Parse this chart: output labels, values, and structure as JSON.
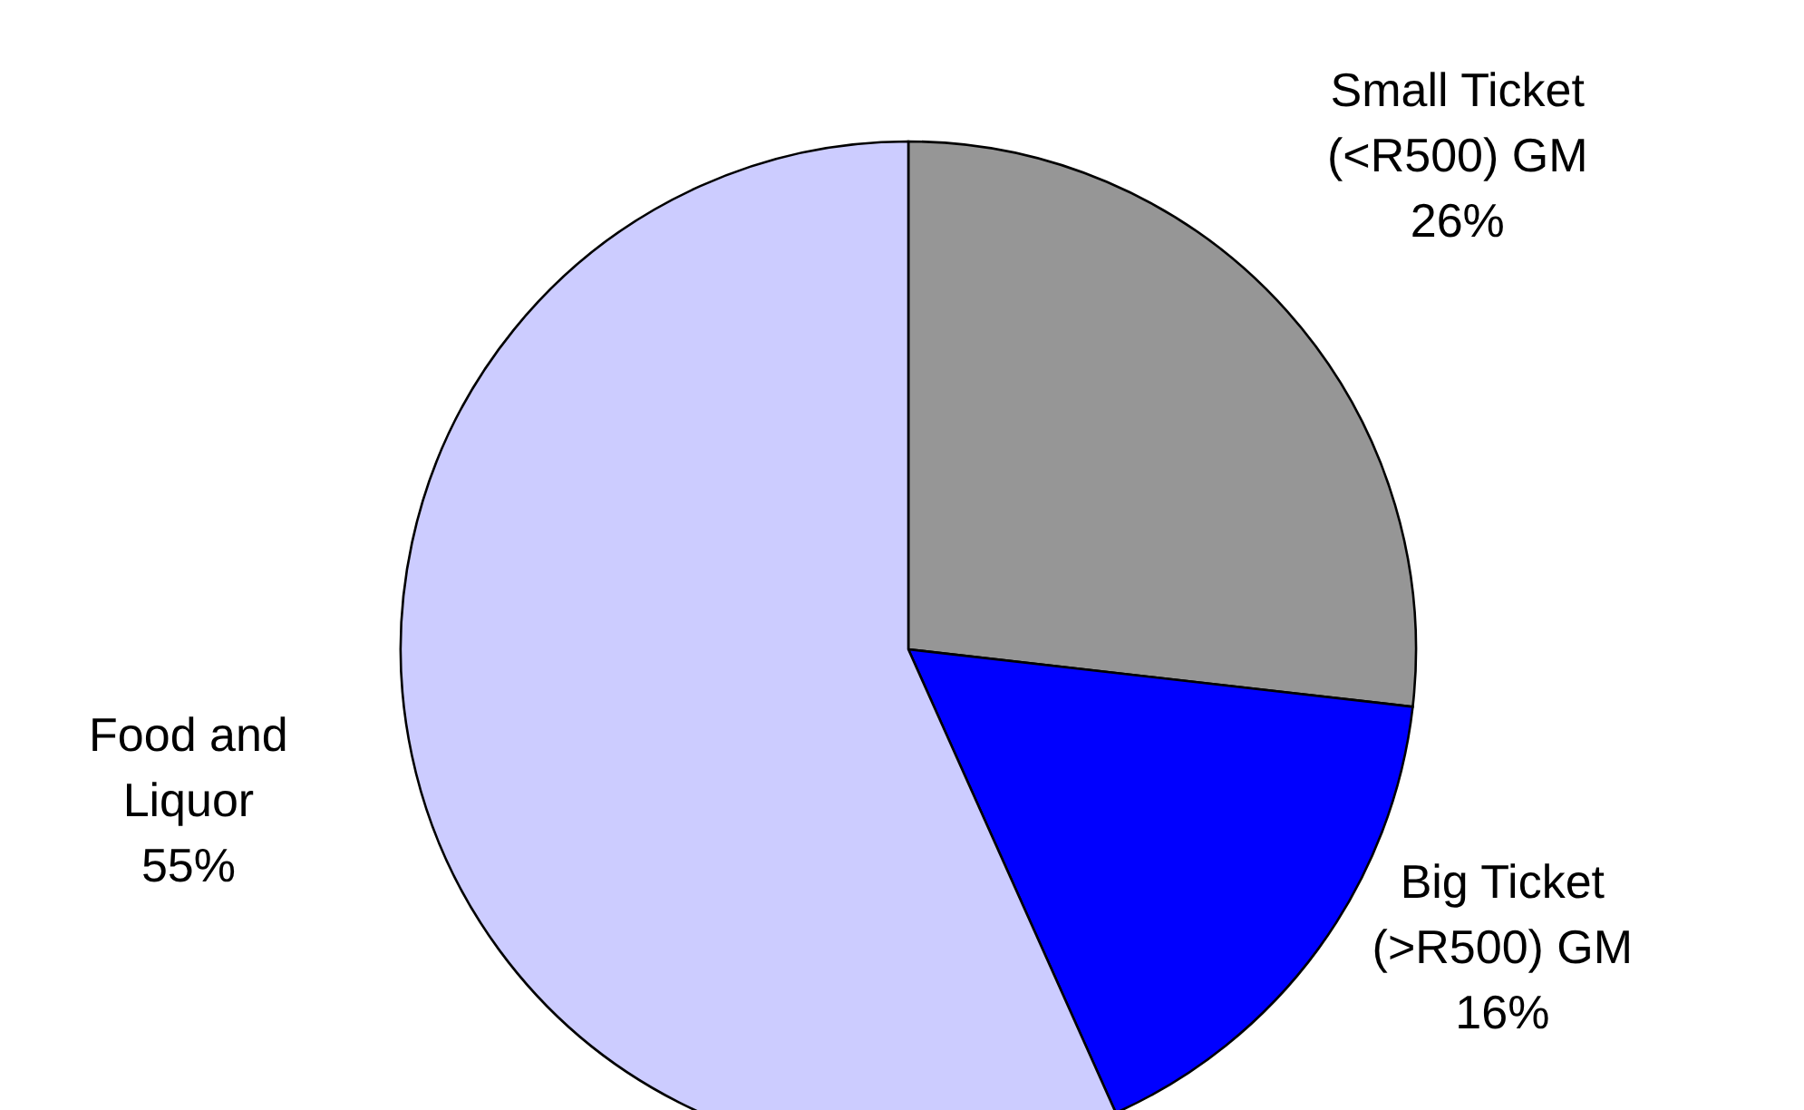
{
  "chart_data": {
    "type": "pie",
    "categories": [
      "Small Ticket (<R500) GM",
      "Big Ticket (>R500) GM",
      "Food and Liquor"
    ],
    "values": [
      26,
      16,
      55
    ],
    "colors": [
      "#969696",
      "#0000ff",
      "#ccccff"
    ],
    "value_labels": [
      "26%",
      "16%",
      "55%"
    ]
  }
}
